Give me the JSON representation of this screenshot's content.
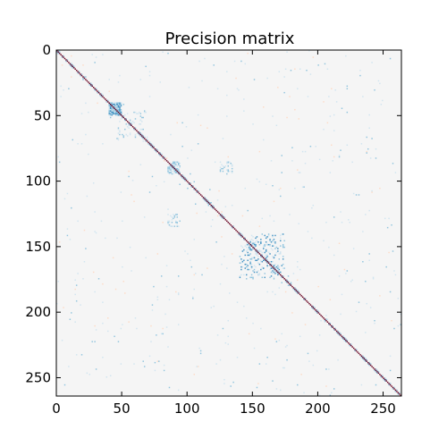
{
  "chart_data": {
    "type": "heatmap",
    "title": "Precision matrix",
    "xlabel": "",
    "ylabel": "",
    "matrix_size": 264,
    "xlim": [
      0,
      264
    ],
    "ylim": [
      264,
      0
    ],
    "x_ticks": [
      0,
      50,
      100,
      150,
      200,
      250
    ],
    "y_ticks": [
      0,
      50,
      100,
      150,
      200,
      250
    ],
    "x_tick_labels": [
      "0",
      "50",
      "100",
      "150",
      "200",
      "250"
    ],
    "y_tick_labels": [
      "0",
      "50",
      "100",
      "150",
      "200",
      "250"
    ],
    "colormap": "diverging red-white-blue",
    "background_color": "#f5f5f5",
    "diagonal_value_color": "#67001f",
    "diagonal": "strong positive value on every diagonal entry (0..263)",
    "off_diagonal_clusters": [
      {
        "rows": [
          40,
          50
        ],
        "cols": [
          40,
          50
        ],
        "sign": "negative",
        "density": "high"
      },
      {
        "rows": [
          140,
          172
        ],
        "cols": [
          145,
          175
        ],
        "sign": "negative",
        "density": "high"
      },
      {
        "rows": [
          85,
          92
        ],
        "cols": [
          85,
          95
        ],
        "sign": "negative",
        "density": "medium"
      },
      {
        "rows": [
          45,
          70
        ],
        "cols": [
          50,
          70
        ],
        "sign": "negative",
        "density": "low"
      },
      {
        "rows": [
          125,
          135
        ],
        "cols": [
          85,
          95
        ],
        "sign": "negative",
        "density": "low"
      }
    ],
    "grid": false,
    "legend": "none"
  }
}
